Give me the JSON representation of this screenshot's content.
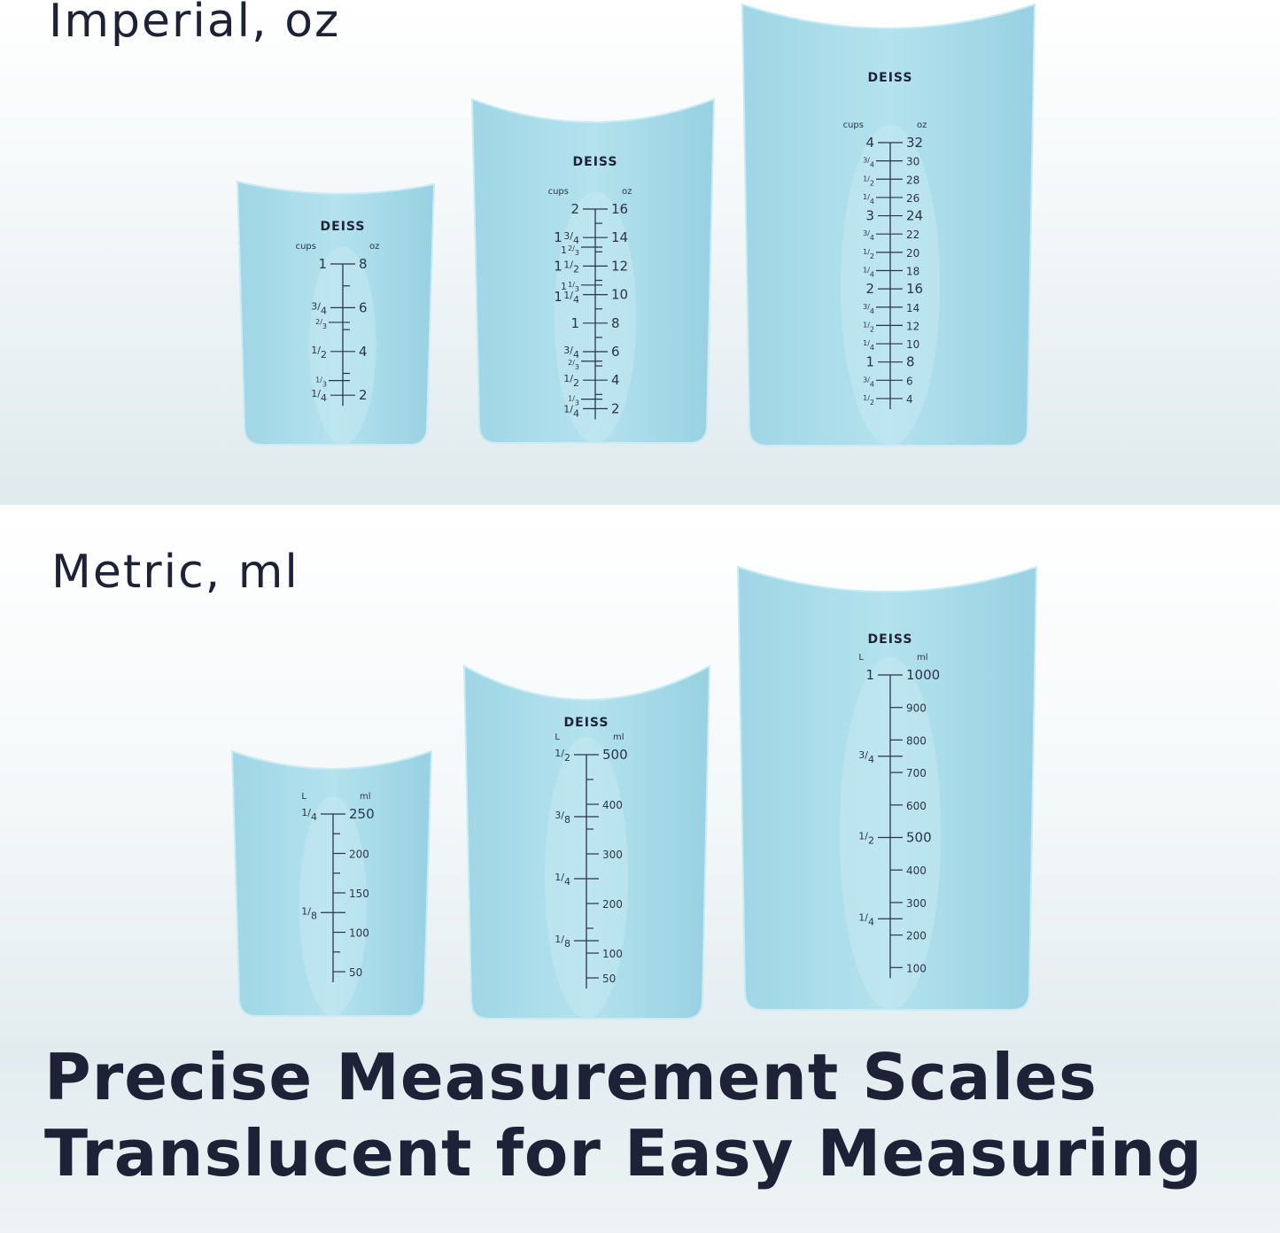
{
  "imperial": {
    "title": "Imperial, oz",
    "brand": "DEISS",
    "cups": [
      {
        "left_unit": "cups",
        "right_unit": "oz",
        "marks": [
          {
            "v": 8,
            "l": "1",
            "r": "8",
            "major": true
          },
          {
            "v": 7
          },
          {
            "v": 6,
            "l": "3/4",
            "r": "6",
            "major": true
          },
          {
            "v": 5.33,
            "l": "2/3"
          },
          {
            "v": 5
          },
          {
            "v": 4,
            "l": "1/2",
            "r": "4",
            "major": true
          },
          {
            "v": 3
          },
          {
            "v": 2.67,
            "l": "1/3"
          },
          {
            "v": 2,
            "l": "1/4",
            "r": "2",
            "major": true
          }
        ]
      },
      {
        "left_unit": "cups",
        "right_unit": "oz",
        "marks": [
          {
            "v": 16,
            "l": "2",
            "r": "16",
            "major": true
          },
          {
            "v": 15
          },
          {
            "v": 14,
            "l": "1 3/4",
            "r": "14",
            "major": true
          },
          {
            "v": 13.33,
            "l": "1 2/3"
          },
          {
            "v": 13
          },
          {
            "v": 12,
            "l": "1 1/2",
            "r": "12",
            "major": true
          },
          {
            "v": 11
          },
          {
            "v": 10.67,
            "l": "1 1/3"
          },
          {
            "v": 10,
            "l": "1 1/4",
            "r": "10",
            "major": true
          },
          {
            "v": 9
          },
          {
            "v": 8,
            "l": "1",
            "r": "8",
            "major": true
          },
          {
            "v": 7
          },
          {
            "v": 6,
            "l": "3/4",
            "r": "6",
            "major": true
          },
          {
            "v": 5.33,
            "l": "2/3"
          },
          {
            "v": 5
          },
          {
            "v": 4,
            "l": "1/2",
            "r": "4",
            "major": true
          },
          {
            "v": 3
          },
          {
            "v": 2.67,
            "l": "1/3"
          },
          {
            "v": 2,
            "l": "1/4",
            "r": "2",
            "major": true
          }
        ]
      },
      {
        "left_unit": "cups",
        "right_unit": "oz",
        "marks": [
          {
            "v": 32,
            "l": "4",
            "r": "32",
            "major": true
          },
          {
            "v": 30,
            "l": "3/4",
            "r": "30"
          },
          {
            "v": 28,
            "l": "1/2",
            "r": "28"
          },
          {
            "v": 26,
            "l": "1/4",
            "r": "26"
          },
          {
            "v": 24,
            "l": "3",
            "r": "24",
            "major": true
          },
          {
            "v": 22,
            "l": "3/4",
            "r": "22"
          },
          {
            "v": 20,
            "l": "1/2",
            "r": "20"
          },
          {
            "v": 18,
            "l": "1/4",
            "r": "18"
          },
          {
            "v": 16,
            "l": "2",
            "r": "16",
            "major": true
          },
          {
            "v": 14,
            "l": "3/4",
            "r": "14"
          },
          {
            "v": 12,
            "l": "1/2",
            "r": "12"
          },
          {
            "v": 10,
            "l": "1/4",
            "r": "10"
          },
          {
            "v": 8,
            "l": "1",
            "r": "8",
            "major": true
          },
          {
            "v": 6,
            "l": "3/4",
            "r": "6"
          },
          {
            "v": 4,
            "l": "1/2",
            "r": "4"
          }
        ]
      }
    ]
  },
  "metric": {
    "title": "Metric, ml",
    "brand": "DEISS",
    "cups": [
      {
        "left_unit": "L",
        "right_unit": "ml",
        "marks": [
          {
            "v": 250,
            "l": "1/4",
            "r": "250",
            "major": true
          },
          {
            "v": 225
          },
          {
            "v": 200,
            "r": "200"
          },
          {
            "v": 175
          },
          {
            "v": 150,
            "r": "150"
          },
          {
            "v": 125,
            "l": "1/8",
            "major": true
          },
          {
            "v": 100,
            "r": "100"
          },
          {
            "v": 75
          },
          {
            "v": 50,
            "r": "50"
          }
        ]
      },
      {
        "left_unit": "L",
        "right_unit": "ml",
        "marks": [
          {
            "v": 500,
            "l": "1/2",
            "r": "500",
            "major": true
          },
          {
            "v": 450
          },
          {
            "v": 400,
            "r": "400"
          },
          {
            "v": 375,
            "l": "3/8",
            "major": true
          },
          {
            "v": 350
          },
          {
            "v": 300,
            "r": "300"
          },
          {
            "v": 250,
            "l": "1/4",
            "major": true
          },
          {
            "v": 200,
            "r": "200"
          },
          {
            "v": 150
          },
          {
            "v": 125,
            "l": "1/8",
            "major": true
          },
          {
            "v": 100,
            "r": "100"
          },
          {
            "v": 50,
            "r": "50"
          }
        ]
      },
      {
        "left_unit": "L",
        "right_unit": "ml",
        "marks": [
          {
            "v": 1000,
            "l": "1",
            "r": "1000",
            "major": true
          },
          {
            "v": 900,
            "r": "900"
          },
          {
            "v": 800,
            "r": "800"
          },
          {
            "v": 750,
            "l": "3/4",
            "major": true
          },
          {
            "v": 700,
            "r": "700"
          },
          {
            "v": 600,
            "r": "600"
          },
          {
            "v": 500,
            "l": "1/2",
            "r": "500",
            "major": true
          },
          {
            "v": 400,
            "r": "400"
          },
          {
            "v": 300,
            "r": "300"
          },
          {
            "v": 250,
            "l": "1/4",
            "major": true
          },
          {
            "v": 200,
            "r": "200"
          },
          {
            "v": 100,
            "r": "100"
          }
        ]
      }
    ]
  },
  "headline": {
    "line1": "Precise Measurement Scales",
    "line2": "Translucent for Easy Measuring"
  },
  "colors": {
    "cup": "#a9dbe8",
    "text": "#1d2236"
  }
}
